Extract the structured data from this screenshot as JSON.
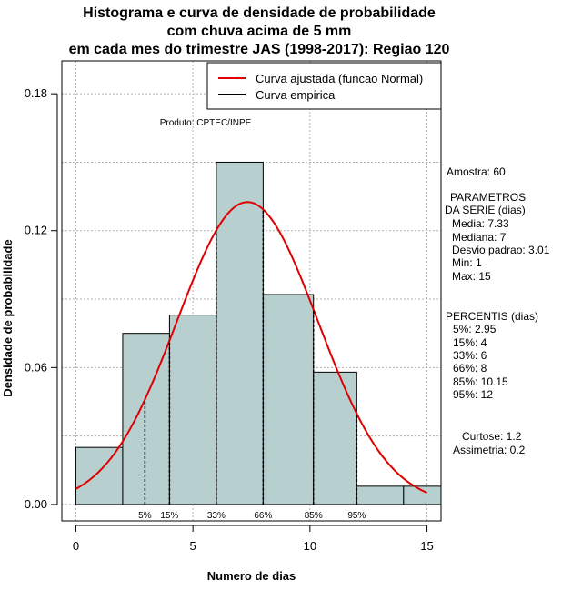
{
  "title_lines": [
    "Histograma e curva de densidade de probabilidade",
    "com chuva acima de 5 mm",
    "em cada mes do trimestre JAS (1998-2017): Regiao 120"
  ],
  "credit": "Produto: CPTEC/INPE",
  "side_panel": {
    "sample": "Amostra: 60",
    "params_header": [
      "PARAMETROS",
      "DA SERIE (dias)"
    ],
    "params": [
      "Media: 7.33",
      "Mediana: 7",
      "Desvio padrao: 3.01",
      "Min: 1",
      "Max: 15"
    ],
    "percentis_header": "PERCENTIS (dias)",
    "percentis": [
      "5%: 2.95",
      "15%: 4",
      "33%: 6",
      "66%: 8",
      "85%: 10.15",
      "95%: 12"
    ],
    "shape": [
      "Curtose: 1.2",
      "Assimetria: 0.2"
    ]
  },
  "colors": {
    "bar_fill": "#b8cfcf",
    "curve": "#e00000",
    "grid": "#b0b0b0"
  },
  "chart_data": {
    "type": "bar",
    "title": "Histograma e curva de densidade de probabilidade com chuva acima de 5 mm em cada mes do trimestre JAS (1998-2017): Regiao 120",
    "xlabel": "Numero de dias",
    "ylabel": "Densidade de probabilidade",
    "xlim": [
      -0.6,
      15.6
    ],
    "ylim": [
      -0.0072,
      0.1944
    ],
    "x_ticks": [
      0,
      5,
      10,
      15
    ],
    "y_ticks": [
      0.0,
      0.06,
      0.12,
      0.18
    ],
    "y_tick_labels": [
      "0.00",
      "0.06",
      "0.12",
      "0.18"
    ],
    "grid": true,
    "bins": [
      {
        "from": 0,
        "to": 2,
        "density": 0.025
      },
      {
        "from": 2,
        "to": 4,
        "density": 0.075
      },
      {
        "from": 4,
        "to": 6,
        "density": 0.083
      },
      {
        "from": 6,
        "to": 8,
        "density": 0.15
      },
      {
        "from": 8,
        "to": 10.15,
        "density": 0.092
      },
      {
        "from": 10.15,
        "to": 12,
        "density": 0.058
      },
      {
        "from": 12,
        "to": 14,
        "density": 0.008
      },
      {
        "from": 14,
        "to": 16,
        "density": 0.008
      }
    ],
    "fitted_curve": {
      "name": "Curva ajustada (funcao Normal)",
      "distribution": "normal",
      "mean": 7.33,
      "sd": 3.01,
      "x_range": [
        0,
        15
      ]
    },
    "empirical_curve": {
      "name": "Curva empirica"
    },
    "percentile_markers": [
      {
        "label": "5%",
        "x": 2.95
      },
      {
        "label": "15%",
        "x": 4
      },
      {
        "label": "33%",
        "x": 6
      },
      {
        "label": "66%",
        "x": 8
      },
      {
        "label": "85%",
        "x": 10.15
      },
      {
        "label": "95%",
        "x": 12
      }
    ],
    "legend": {
      "position": "top-right",
      "entries": [
        "Curva ajustada (funcao Normal)",
        "Curva empirica"
      ]
    }
  }
}
